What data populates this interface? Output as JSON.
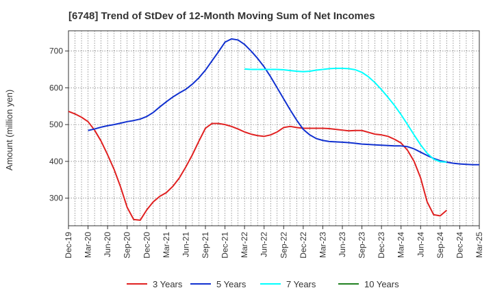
{
  "chart_data": {
    "type": "line",
    "title": "[6748]  Trend of StDev of 12-Month Moving Sum of Net Incomes",
    "xlabel": "",
    "ylabel": "Amount (million yen)",
    "ylim": [
      225,
      755
    ],
    "yticks": [
      300,
      400,
      500,
      600,
      700
    ],
    "x_ticks": [
      "Dec-19",
      "Mar-20",
      "Jun-20",
      "Sep-20",
      "Dec-20",
      "Mar-21",
      "Jun-21",
      "Sep-21",
      "Dec-21",
      "Mar-22",
      "Jun-22",
      "Sep-22",
      "Dec-22",
      "Mar-23",
      "Jun-23",
      "Sep-23",
      "Dec-23",
      "Mar-24",
      "Jun-24",
      "Sep-24",
      "Dec-24",
      "Mar-25"
    ],
    "grid": true,
    "legend_position": "bottom",
    "series": [
      {
        "name": "3 Years",
        "color": "#e02020",
        "start_month": 0,
        "values": [
          536,
          529,
          520,
          508,
          485,
          455,
          418,
          378,
          330,
          275,
          242,
          240,
          268,
          290,
          305,
          315,
          332,
          355,
          385,
          418,
          455,
          490,
          503,
          503,
          500,
          495,
          488,
          480,
          474,
          470,
          468,
          472,
          480,
          492,
          495,
          492,
          490,
          490,
          490,
          490,
          489,
          487,
          485,
          483,
          484,
          484,
          479,
          474,
          472,
          468,
          460,
          450,
          430,
          400,
          355,
          290,
          255,
          252,
          267
        ]
      },
      {
        "name": "5 Years",
        "color": "#1030d0",
        "start_month": 3,
        "values": [
          484,
          488,
          493,
          497,
          500,
          504,
          508,
          511,
          515,
          522,
          533,
          548,
          562,
          575,
          586,
          596,
          610,
          627,
          648,
          673,
          698,
          724,
          733,
          730,
          718,
          700,
          680,
          657,
          630,
          600,
          570,
          540,
          512,
          487,
          472,
          462,
          457,
          454,
          453,
          452,
          451,
          449,
          447,
          446,
          445,
          444,
          443,
          442,
          442,
          440,
          434,
          425,
          416,
          408,
          402,
          398,
          395,
          393,
          392,
          391,
          391
        ]
      },
      {
        "name": "7 Years",
        "color": "#00ffff",
        "start_month": 27,
        "values": [
          651,
          650,
          650,
          650,
          650,
          650,
          649,
          647,
          645,
          644,
          645,
          648,
          650,
          652,
          653,
          653,
          652,
          649,
          642,
          630,
          614,
          595,
          574,
          552,
          527,
          500,
          472,
          445,
          422,
          406,
          399,
          398
        ]
      },
      {
        "name": "10 Years",
        "color": "#208020",
        "start_month": 0,
        "values": []
      }
    ]
  }
}
